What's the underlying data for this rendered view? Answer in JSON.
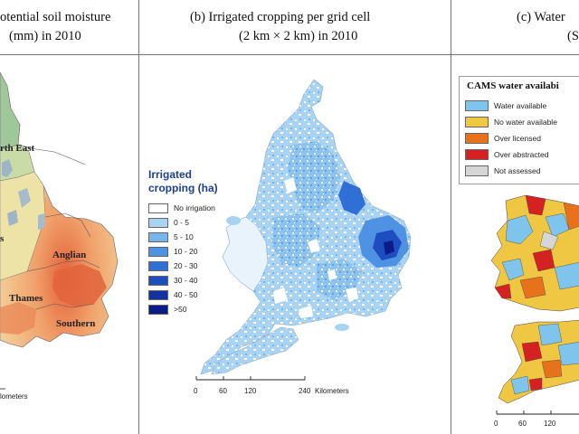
{
  "panel_a": {
    "title_line1": "otential soil moisture",
    "title_line2": "(mm) in 2010",
    "region_labels": [
      "rth East",
      "Anglian",
      "Thames",
      "Southern",
      "s"
    ],
    "scale_label": "lometers"
  },
  "panel_b": {
    "title_line1": "(b)  Irrigated cropping per grid cell",
    "title_line2": "(2 km × 2 km) in 2010",
    "legend": {
      "title_line1": "Irrigated",
      "title_line2": "cropping (ha)",
      "items": [
        {
          "label": "No irrigation",
          "color": "#ffffff"
        },
        {
          "label": "0 - 5",
          "color": "#a9d3f2"
        },
        {
          "label": "5 - 10",
          "color": "#79b4ea"
        },
        {
          "label": "10 - 20",
          "color": "#4f92e3"
        },
        {
          "label": "20 - 30",
          "color": "#2f6fd6"
        },
        {
          "label": "30 - 40",
          "color": "#1d4dbf"
        },
        {
          "label": "40 - 50",
          "color": "#1331a3"
        },
        {
          "label": ">50",
          "color": "#0a1a86"
        }
      ]
    },
    "scale": {
      "ticks": [
        "0",
        "60",
        "120",
        "240"
      ],
      "unit": "Kilometers"
    }
  },
  "panel_c": {
    "title_line1": "(c)  Water",
    "title_line2": "(Se",
    "legend": {
      "title": "CAMS water availabi",
      "items": [
        {
          "label": "Water available",
          "color": "#7fc4ec"
        },
        {
          "label": "No water available",
          "color": "#efc743"
        },
        {
          "label": "Over licensed",
          "color": "#e8721b"
        },
        {
          "label": "Over abstracted",
          "color": "#d42222"
        },
        {
          "label": "Not assessed",
          "color": "#d6d6d6"
        }
      ]
    },
    "scale": {
      "ticks": [
        "0",
        "60",
        "120"
      ]
    }
  }
}
